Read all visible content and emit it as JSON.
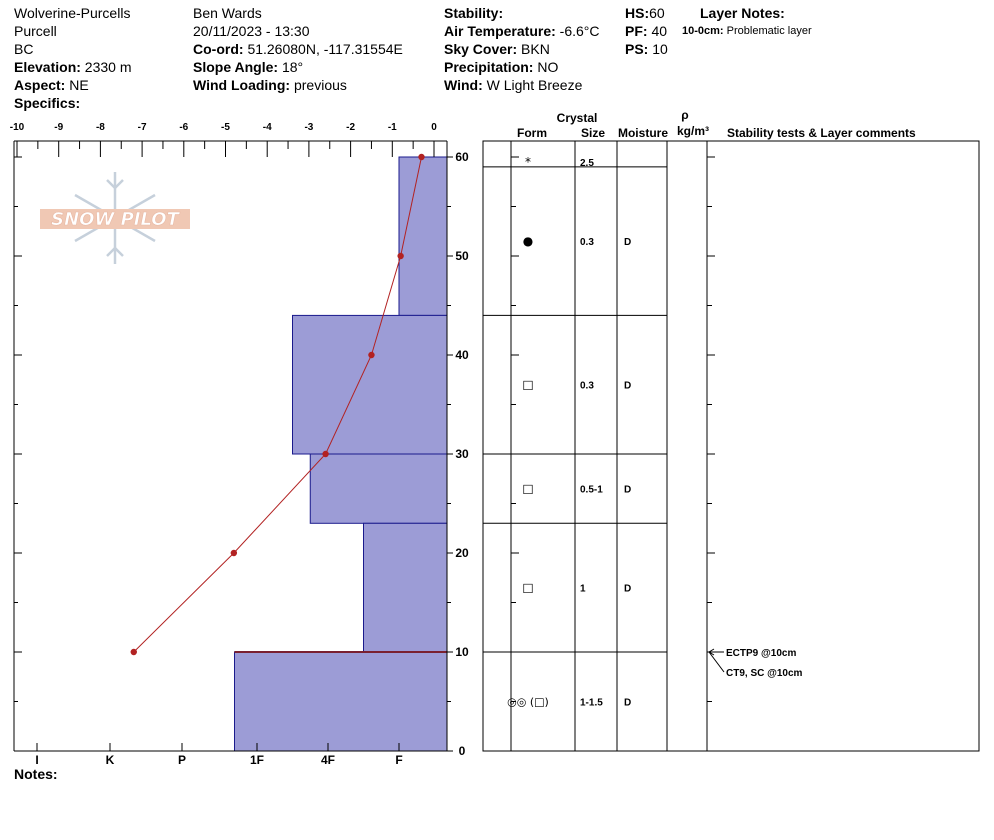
{
  "header": {
    "location": "Wolverine-Purcells",
    "range": "Purcell",
    "region": "BC",
    "elevation_label": "Elevation:",
    "elevation": "2330 m",
    "aspect_label": "Aspect:",
    "aspect": "NE",
    "specifics_label": "Specifics:",
    "observer": "Ben Wards",
    "datetime": "20/11/2023 - 13:30",
    "coord_label": "Co-ord:",
    "coord": "51.26080N, -117.31554E",
    "slope_label": "Slope Angle:",
    "slope": "18°",
    "wind_loading_label": "Wind Loading:",
    "wind_loading": "previous",
    "stability_label": "Stability:",
    "air_temp_label": "Air Temperature:",
    "air_temp": "-6.6°C",
    "sky_label": "Sky Cover:",
    "sky": "BKN",
    "precip_label": "Precipitation:",
    "precip": "NO",
    "wind_label": "Wind:",
    "wind": "W Light Breeze",
    "hs_label": "HS:",
    "hs": "60",
    "pf_label": "PF:",
    "pf": "40",
    "ps_label": "PS:",
    "ps": "10",
    "layer_notes_label": "Layer Notes:",
    "layer_note_depth": "10-0cm:",
    "layer_note_text": "Problematic layer"
  },
  "notes_label": "Notes:",
  "logo_text": "SNOW PILOT",
  "columns": {
    "crystal": "Crystal",
    "form": "Form",
    "size": "Size",
    "moisture": "Moisture",
    "rho": "ρ",
    "density_unit": "kg/m³",
    "comments": "Stability tests & Layer comments"
  },
  "colors": {
    "hardness_fill": "#9c9cd6",
    "hardness_stroke": "#1a1a8c",
    "temp_line": "#b22222"
  },
  "chart_data": {
    "type": "bar",
    "temp_axis": {
      "ticks": [
        -10,
        -9,
        -8,
        -7,
        -6,
        -5,
        -4,
        -3,
        -2,
        -1,
        0
      ],
      "labels": [
        "-10",
        "-9",
        "-8",
        "-7",
        "-6",
        "-5",
        "-4",
        "-3",
        "-2",
        "-1",
        "0"
      ],
      "range": [
        -10,
        0
      ]
    },
    "height_axis": {
      "ticks": [
        0,
        10,
        20,
        30,
        40,
        50,
        60
      ],
      "range": [
        0,
        60
      ]
    },
    "hardness_axis": {
      "labels": [
        "I",
        "K",
        "P",
        "1F",
        "4F",
        "F"
      ],
      "values": [
        6,
        5,
        4,
        3,
        2,
        1
      ]
    },
    "hardness_layers": [
      {
        "top": 60,
        "bottom": 44,
        "hardness": 1
      },
      {
        "top": 44,
        "bottom": 30,
        "hardness": 2.5
      },
      {
        "top": 30,
        "bottom": 23,
        "hardness": 2.25
      },
      {
        "top": 23,
        "bottom": 10,
        "hardness": 1.5
      },
      {
        "top": 10,
        "bottom": 0,
        "hardness": 3.3
      }
    ],
    "weak_layer_height": 10,
    "temperature_profile": [
      {
        "height": 60,
        "temp": -0.3
      },
      {
        "height": 50,
        "temp": -0.8
      },
      {
        "height": 40,
        "temp": -1.5
      },
      {
        "height": 30,
        "temp": -2.6
      },
      {
        "height": 20,
        "temp": -4.8
      },
      {
        "height": 10,
        "temp": -7.2
      }
    ],
    "layers": [
      {
        "top": 60,
        "bottom": 59,
        "form": "*",
        "size": "2.5",
        "moisture": ""
      },
      {
        "top": 59,
        "bottom": 44,
        "form": "●",
        "size": "0.3",
        "moisture": "D"
      },
      {
        "top": 44,
        "bottom": 30,
        "form": "□",
        "size": "0.3",
        "moisture": "D"
      },
      {
        "top": 30,
        "bottom": 23,
        "form": "□",
        "size": "0.5-1",
        "moisture": "D"
      },
      {
        "top": 23,
        "bottom": 10,
        "form": "□",
        "size": "1",
        "moisture": "D"
      },
      {
        "top": 10,
        "bottom": 0,
        "form": "◎◎ (□)",
        "size": "1-1.5",
        "moisture": "D"
      }
    ],
    "stability_tests": [
      {
        "height": 10,
        "text": "ECTP9 @10cm"
      },
      {
        "height": 10,
        "text": "CT9, SC @10cm"
      }
    ]
  }
}
